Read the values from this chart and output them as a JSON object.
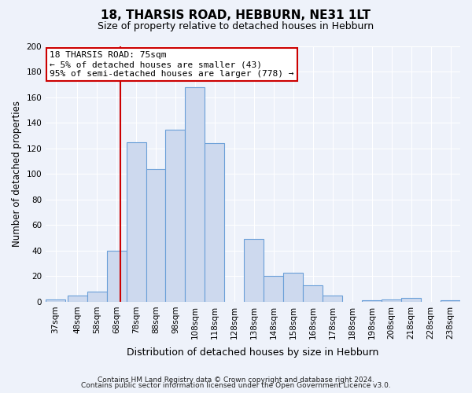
{
  "title": "18, THARSIS ROAD, HEBBURN, NE31 1LT",
  "subtitle": "Size of property relative to detached houses in Hebburn",
  "xlabel": "Distribution of detached houses by size in Hebburn",
  "ylabel": "Number of detached properties",
  "bar_color": "#cdd9ee",
  "bar_edge_color": "#6a9fd8",
  "bins_labels": [
    "37sqm",
    "48sqm",
    "58sqm",
    "68sqm",
    "78sqm",
    "88sqm",
    "98sqm",
    "108sqm",
    "118sqm",
    "128sqm",
    "138sqm",
    "148sqm",
    "158sqm",
    "168sqm",
    "178sqm",
    "188sqm",
    "198sqm",
    "208sqm",
    "218sqm",
    "228sqm",
    "238sqm"
  ],
  "values": [
    2,
    5,
    8,
    40,
    125,
    104,
    135,
    168,
    124,
    0,
    49,
    20,
    23,
    13,
    5,
    0,
    1,
    2,
    3,
    0,
    1
  ],
  "bin_starts": [
    37,
    48,
    58,
    68,
    78,
    88,
    98,
    108,
    118,
    128,
    138,
    148,
    158,
    168,
    178,
    188,
    198,
    208,
    218,
    228,
    238
  ],
  "bin_width": 10,
  "red_line_x": 75,
  "ylim": [
    0,
    200
  ],
  "yticks": [
    0,
    20,
    40,
    60,
    80,
    100,
    120,
    140,
    160,
    180,
    200
  ],
  "annotation_title": "18 THARSIS ROAD: 75sqm",
  "annotation_line1": "← 5% of detached houses are smaller (43)",
  "annotation_line2": "95% of semi-detached houses are larger (778) →",
  "annotation_box_color": "#ffffff",
  "annotation_box_edge": "#cc0000",
  "footnote1": "Contains HM Land Registry data © Crown copyright and database right 2024.",
  "footnote2": "Contains public sector information licensed under the Open Government Licence v3.0.",
  "background_color": "#eef2fa",
  "plot_bg_color": "#eef2fa",
  "grid_color": "#ffffff",
  "tick_label_fontsize": 7.5,
  "ylabel_fontsize": 8.5,
  "xlabel_fontsize": 9,
  "title_fontsize": 11,
  "subtitle_fontsize": 9
}
